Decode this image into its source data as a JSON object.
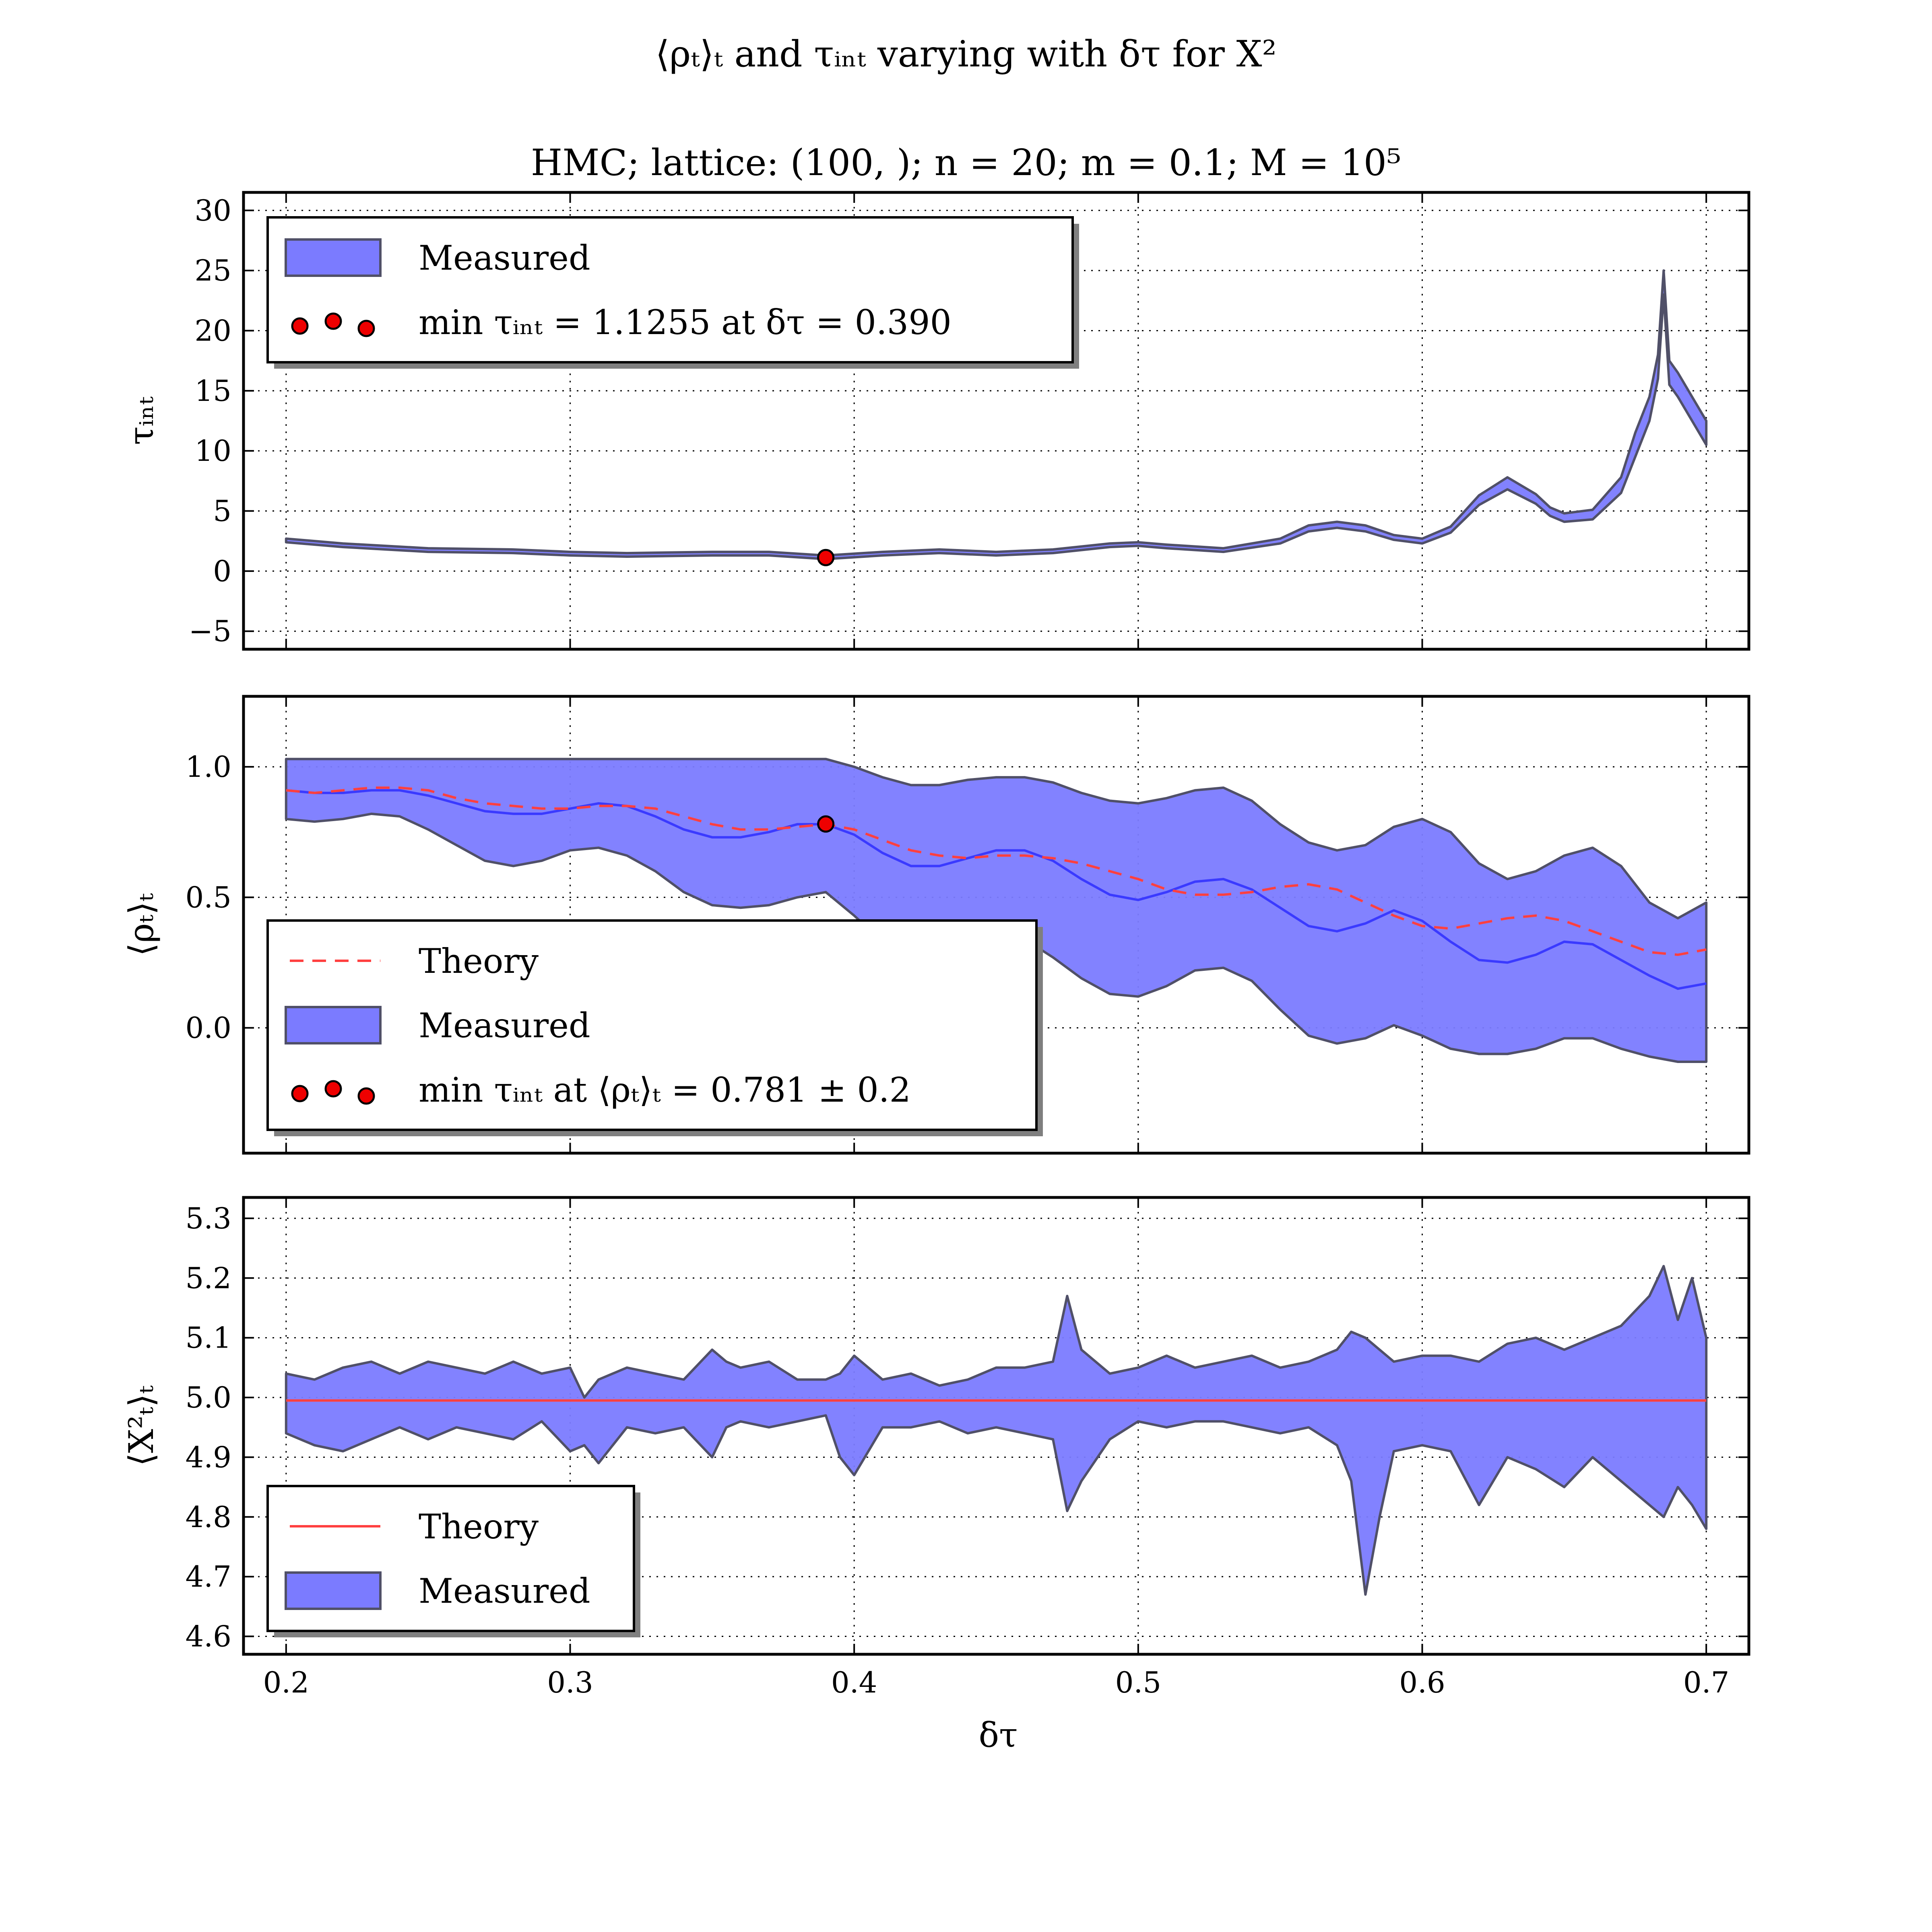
{
  "figure": {
    "suptitle": "⟨ρₜ⟩ₜ and τᵢₙₜ varying with δτ for X²",
    "subtitle": "HMC; lattice: (100, ); n = 20; m = 0.1; M = 10⁵",
    "xlabel": "δτ",
    "xticks": [
      "0.2",
      "0.3",
      "0.4",
      "0.5",
      "0.6",
      "0.7"
    ]
  },
  "colors": {
    "band_fill": "#7b7bff",
    "band_edge": "#505068",
    "theory": "#ff4040",
    "mean_line": "#3a3aff",
    "marker": "#ee0000"
  },
  "chart_data": [
    {
      "type": "area",
      "id": "tau",
      "ylabel": "τᵢₙₜ",
      "xlim": [
        0.185,
        0.715
      ],
      "ylim": [
        -6.5,
        31.5
      ],
      "yticks": [
        -5,
        0,
        5,
        10,
        15,
        20,
        25,
        30
      ],
      "ytick_labels": [
        "−5",
        "0",
        "5",
        "10",
        "15",
        "20",
        "25",
        "30"
      ],
      "grid": true,
      "legend_position": "top-left",
      "legend": [
        {
          "kind": "band",
          "label": "Measured"
        },
        {
          "kind": "dots",
          "label": "min τᵢₙₜ = 1.1255 at δτ = 0.390"
        }
      ],
      "x": [
        0.2,
        0.22,
        0.25,
        0.28,
        0.3,
        0.32,
        0.35,
        0.37,
        0.39,
        0.41,
        0.43,
        0.45,
        0.47,
        0.49,
        0.5,
        0.51,
        0.53,
        0.55,
        0.56,
        0.57,
        0.58,
        0.59,
        0.6,
        0.61,
        0.62,
        0.63,
        0.64,
        0.645,
        0.65,
        0.66,
        0.67,
        0.675,
        0.68,
        0.683,
        0.685,
        0.687,
        0.69,
        0.695,
        0.7
      ],
      "measured_low": [
        2.4,
        2.0,
        1.6,
        1.5,
        1.3,
        1.2,
        1.3,
        1.3,
        1.0,
        1.3,
        1.5,
        1.3,
        1.5,
        2.0,
        2.1,
        1.9,
        1.6,
        2.3,
        3.3,
        3.6,
        3.3,
        2.6,
        2.3,
        3.2,
        5.5,
        6.8,
        5.6,
        4.6,
        4.1,
        4.3,
        6.5,
        9.5,
        12.5,
        16.0,
        23.0,
        15.5,
        14.5,
        12.5,
        10.5
      ],
      "measured_high": [
        2.7,
        2.3,
        1.9,
        1.8,
        1.6,
        1.5,
        1.6,
        1.6,
        1.3,
        1.6,
        1.8,
        1.6,
        1.8,
        2.3,
        2.4,
        2.2,
        1.9,
        2.7,
        3.8,
        4.1,
        3.8,
        3.0,
        2.7,
        3.7,
        6.3,
        7.8,
        6.4,
        5.3,
        4.8,
        5.1,
        7.8,
        11.5,
        14.5,
        18.0,
        25.0,
        17.5,
        16.5,
        14.5,
        12.5
      ],
      "marker": {
        "x": 0.39,
        "y": 1.1255
      }
    },
    {
      "type": "area",
      "id": "rho",
      "ylabel": "⟨ρₜ⟩ₜ",
      "xlim": [
        0.185,
        0.715
      ],
      "ylim": [
        -0.48,
        1.27
      ],
      "yticks": [
        0.0,
        0.5,
        1.0
      ],
      "ytick_labels": [
        "0.0",
        "0.5",
        "1.0"
      ],
      "grid": true,
      "legend_position": "lower-left",
      "legend": [
        {
          "kind": "dashed",
          "label": "Theory"
        },
        {
          "kind": "band",
          "label": "Measured"
        },
        {
          "kind": "dots",
          "label": "min τᵢₙₜ at ⟨ρₜ⟩ₜ = 0.781 ± 0.2"
        }
      ],
      "x": [
        0.2,
        0.21,
        0.22,
        0.23,
        0.24,
        0.25,
        0.26,
        0.27,
        0.28,
        0.29,
        0.3,
        0.31,
        0.32,
        0.33,
        0.34,
        0.35,
        0.36,
        0.37,
        0.38,
        0.39,
        0.4,
        0.41,
        0.42,
        0.43,
        0.44,
        0.45,
        0.46,
        0.47,
        0.48,
        0.49,
        0.5,
        0.51,
        0.52,
        0.53,
        0.54,
        0.55,
        0.56,
        0.57,
        0.58,
        0.59,
        0.6,
        0.61,
        0.62,
        0.63,
        0.64,
        0.65,
        0.66,
        0.67,
        0.68,
        0.69,
        0.7
      ],
      "theory": [
        0.91,
        0.9,
        0.91,
        0.92,
        0.92,
        0.91,
        0.88,
        0.86,
        0.85,
        0.84,
        0.84,
        0.85,
        0.85,
        0.84,
        0.81,
        0.78,
        0.76,
        0.76,
        0.77,
        0.78,
        0.76,
        0.72,
        0.68,
        0.66,
        0.65,
        0.66,
        0.66,
        0.65,
        0.63,
        0.6,
        0.57,
        0.53,
        0.51,
        0.51,
        0.52,
        0.54,
        0.55,
        0.53,
        0.48,
        0.43,
        0.39,
        0.38,
        0.4,
        0.42,
        0.43,
        0.41,
        0.37,
        0.33,
        0.29,
        0.28,
        0.3
      ],
      "mean": [
        0.91,
        0.9,
        0.9,
        0.91,
        0.91,
        0.89,
        0.86,
        0.83,
        0.82,
        0.82,
        0.84,
        0.86,
        0.85,
        0.81,
        0.76,
        0.73,
        0.73,
        0.75,
        0.78,
        0.78,
        0.74,
        0.67,
        0.62,
        0.62,
        0.65,
        0.68,
        0.68,
        0.64,
        0.57,
        0.51,
        0.49,
        0.52,
        0.56,
        0.57,
        0.53,
        0.46,
        0.39,
        0.37,
        0.4,
        0.45,
        0.41,
        0.33,
        0.26,
        0.25,
        0.28,
        0.33,
        0.32,
        0.26,
        0.2,
        0.15,
        0.17
      ],
      "measured_low": [
        0.8,
        0.79,
        0.8,
        0.82,
        0.81,
        0.76,
        0.7,
        0.64,
        0.62,
        0.64,
        0.68,
        0.69,
        0.66,
        0.6,
        0.52,
        0.47,
        0.46,
        0.47,
        0.5,
        0.52,
        0.43,
        0.33,
        0.3,
        0.31,
        0.34,
        0.36,
        0.34,
        0.27,
        0.19,
        0.13,
        0.12,
        0.16,
        0.22,
        0.23,
        0.18,
        0.07,
        -0.03,
        -0.06,
        -0.04,
        0.01,
        -0.03,
        -0.08,
        -0.1,
        -0.1,
        -0.08,
        -0.04,
        -0.04,
        -0.08,
        -0.11,
        -0.13,
        -0.13
      ],
      "measured_high": [
        1.03,
        1.03,
        1.03,
        1.03,
        1.03,
        1.03,
        1.03,
        1.03,
        1.03,
        1.03,
        1.03,
        1.03,
        1.03,
        1.03,
        1.03,
        1.03,
        1.03,
        1.03,
        1.03,
        1.03,
        1.0,
        0.96,
        0.93,
        0.93,
        0.95,
        0.96,
        0.96,
        0.94,
        0.9,
        0.87,
        0.86,
        0.88,
        0.91,
        0.92,
        0.87,
        0.78,
        0.71,
        0.68,
        0.7,
        0.77,
        0.8,
        0.75,
        0.63,
        0.57,
        0.6,
        0.66,
        0.69,
        0.62,
        0.48,
        0.42,
        0.48
      ],
      "marker": {
        "x": 0.39,
        "y": 0.781
      }
    },
    {
      "type": "area",
      "id": "x2",
      "ylabel": "⟨X²ₜ⟩ₜ",
      "xlim": [
        0.185,
        0.715
      ],
      "ylim": [
        4.57,
        5.335
      ],
      "yticks": [
        4.6,
        4.7,
        4.8,
        4.9,
        5.0,
        5.1,
        5.2,
        5.3
      ],
      "ytick_labels": [
        "4.6",
        "4.7",
        "4.8",
        "4.9",
        "5.0",
        "5.1",
        "5.2",
        "5.3"
      ],
      "grid": true,
      "legend_position": "lower-left",
      "legend": [
        {
          "kind": "line",
          "label": "Theory"
        },
        {
          "kind": "band",
          "label": "Measured"
        }
      ],
      "theory_value": 4.995,
      "x": [
        0.2,
        0.21,
        0.22,
        0.23,
        0.24,
        0.25,
        0.26,
        0.27,
        0.28,
        0.29,
        0.3,
        0.305,
        0.31,
        0.32,
        0.33,
        0.34,
        0.35,
        0.355,
        0.36,
        0.37,
        0.38,
        0.39,
        0.395,
        0.4,
        0.41,
        0.42,
        0.43,
        0.44,
        0.45,
        0.46,
        0.47,
        0.475,
        0.48,
        0.49,
        0.5,
        0.51,
        0.52,
        0.53,
        0.54,
        0.55,
        0.56,
        0.57,
        0.575,
        0.58,
        0.585,
        0.59,
        0.6,
        0.61,
        0.62,
        0.63,
        0.64,
        0.65,
        0.66,
        0.67,
        0.68,
        0.685,
        0.69,
        0.695,
        0.7
      ],
      "measured_low": [
        4.94,
        4.92,
        4.91,
        4.93,
        4.95,
        4.93,
        4.95,
        4.94,
        4.93,
        4.96,
        4.91,
        4.92,
        4.89,
        4.95,
        4.94,
        4.95,
        4.9,
        4.95,
        4.96,
        4.95,
        4.96,
        4.97,
        4.9,
        4.87,
        4.95,
        4.95,
        4.96,
        4.94,
        4.95,
        4.94,
        4.93,
        4.81,
        4.86,
        4.93,
        4.96,
        4.95,
        4.96,
        4.96,
        4.95,
        4.94,
        4.95,
        4.92,
        4.86,
        4.67,
        4.8,
        4.91,
        4.92,
        4.91,
        4.82,
        4.9,
        4.88,
        4.85,
        4.9,
        4.86,
        4.82,
        4.8,
        4.85,
        4.82,
        4.78
      ],
      "measured_high": [
        5.04,
        5.03,
        5.05,
        5.06,
        5.04,
        5.06,
        5.05,
        5.04,
        5.06,
        5.04,
        5.05,
        5.0,
        5.03,
        5.05,
        5.04,
        5.03,
        5.08,
        5.06,
        5.05,
        5.06,
        5.03,
        5.03,
        5.04,
        5.07,
        5.03,
        5.04,
        5.02,
        5.03,
        5.05,
        5.05,
        5.06,
        5.17,
        5.08,
        5.04,
        5.05,
        5.07,
        5.05,
        5.06,
        5.07,
        5.05,
        5.06,
        5.08,
        5.11,
        5.1,
        5.08,
        5.06,
        5.07,
        5.07,
        5.06,
        5.09,
        5.1,
        5.08,
        5.1,
        5.12,
        5.17,
        5.22,
        5.13,
        5.2,
        5.1
      ]
    }
  ]
}
